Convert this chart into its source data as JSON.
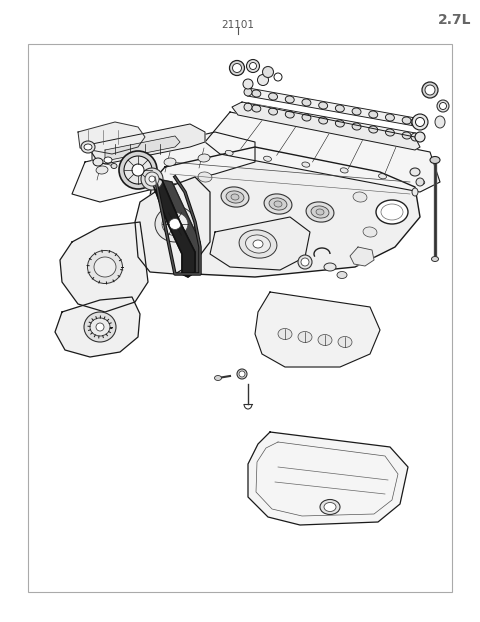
{
  "title_right": "2.7L",
  "title_center": "21101",
  "background_color": "#ffffff",
  "border_color": "#aaaaaa",
  "line_color": "#1a1a1a",
  "fig_width": 4.8,
  "fig_height": 6.22,
  "dpi": 100,
  "border": [
    28,
    30,
    424,
    548
  ]
}
